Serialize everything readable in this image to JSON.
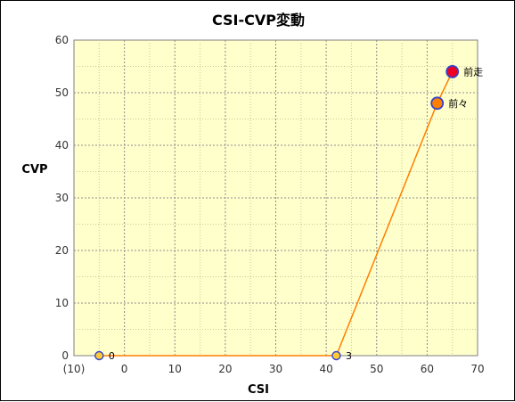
{
  "chart_data": {
    "type": "scatter",
    "title": "CSI-CVP変動",
    "xlabel": "CSI",
    "ylabel": "CVP",
    "xlim": [
      -10,
      70
    ],
    "ylim": [
      0,
      60
    ],
    "x_ticks": [
      "(10)",
      "0",
      "10",
      "20",
      "30",
      "40",
      "50",
      "60",
      "70"
    ],
    "y_ticks": [
      "0",
      "10",
      "20",
      "30",
      "40",
      "50",
      "60"
    ],
    "grid": true,
    "line_color": "#ff7f00",
    "plot_bg": "#ffffcc",
    "points": [
      {
        "x": -5,
        "y": 0,
        "label": "0",
        "color": "#ffcc33"
      },
      {
        "x": 42,
        "y": 0,
        "label": "3",
        "color": "#ffcc33"
      },
      {
        "x": 62,
        "y": 48,
        "label": "前々",
        "color": "#ff7f00"
      },
      {
        "x": 65,
        "y": 54,
        "label": "前走",
        "color": "#ee0022"
      }
    ]
  }
}
